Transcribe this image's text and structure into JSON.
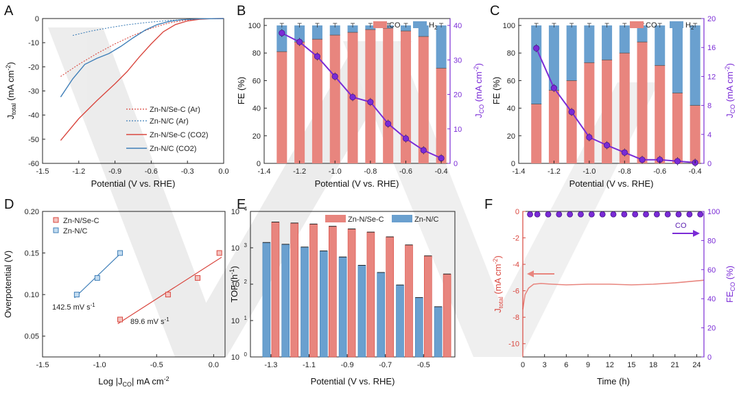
{
  "figure": {
    "panel_letters": [
      "A",
      "B",
      "C",
      "D",
      "E",
      "F"
    ]
  },
  "colors": {
    "red": "#e8857e",
    "red_dark": "#d9463e",
    "blue": "#6aa0cf",
    "blue_dark": "#3f7fb8",
    "purple": "#7a2bd6",
    "purple_dark": "#5a1eb0",
    "grid": "#888888",
    "watermark": "#bdbdbd"
  },
  "chart_data": [
    {
      "id": "A",
      "type": "line",
      "title": "",
      "xlabel": "Potential (V vs. RHE)",
      "ylabel": "J_total (mA cm^-2)",
      "xlim": [
        -1.5,
        0.0
      ],
      "ylim": [
        -60,
        0
      ],
      "xticks": [
        -1.5,
        -1.2,
        -0.9,
        -0.6,
        -0.3,
        0.0
      ],
      "yticks": [
        0,
        -10,
        -20,
        -30,
        -40,
        -50,
        -60
      ],
      "xtick_labels": [
        "-1.5",
        "-1.2",
        "-0.9",
        "-0.6",
        "-0.3",
        "0.0"
      ],
      "ytick_labels": [
        "0",
        "-10",
        "-20",
        "-30",
        "-40",
        "-50",
        "-60"
      ],
      "series": [
        {
          "name": "Zn-N/Se-C (Ar)",
          "style": "dotted",
          "color": "#d9463e",
          "x": [
            -1.35,
            -1.2,
            -1.05,
            -0.9,
            -0.75,
            -0.6,
            -0.45,
            -0.3,
            -0.15,
            0.0
          ],
          "y": [
            -24,
            -19,
            -14.5,
            -10.5,
            -7,
            -4,
            -1.8,
            -0.6,
            -0.1,
            0
          ]
        },
        {
          "name": "Zn-N/C (Ar)",
          "style": "dotted",
          "color": "#3f7fb8",
          "x": [
            -1.25,
            -1.1,
            -0.95,
            -0.8,
            -0.65,
            -0.5,
            -0.35,
            -0.2,
            -0.1,
            0.0
          ],
          "y": [
            -7,
            -5.2,
            -3.8,
            -2.6,
            -1.7,
            -1,
            -0.5,
            -0.2,
            -0.05,
            0
          ]
        },
        {
          "name": "Zn-N/Se-C (CO2)",
          "style": "solid",
          "color": "#d9463e",
          "x": [
            -1.35,
            -1.2,
            -1.05,
            -0.9,
            -0.8,
            -0.7,
            -0.6,
            -0.5,
            -0.4,
            -0.3,
            -0.2,
            -0.1,
            0.0
          ],
          "y": [
            -50.5,
            -41.5,
            -34,
            -27,
            -22,
            -16,
            -10.5,
            -5.5,
            -2.5,
            -1,
            -0.3,
            -0.05,
            0
          ]
        },
        {
          "name": "Zn-N/C (CO2)",
          "style": "solid",
          "color": "#3f7fb8",
          "x": [
            -1.35,
            -1.25,
            -1.15,
            -1.05,
            -0.95,
            -0.85,
            -0.75,
            -0.65,
            -0.55,
            -0.45,
            -0.35,
            -0.2,
            0.0
          ],
          "y": [
            -32.5,
            -25,
            -19,
            -16.5,
            -14.5,
            -11.5,
            -8,
            -4.8,
            -2.5,
            -1.2,
            -0.5,
            -0.1,
            0
          ]
        }
      ],
      "legend_position": "bottom-right"
    },
    {
      "id": "B",
      "type": "bar",
      "xlabel": "Potential (V vs. RHE)",
      "ylabel": "FE (%)",
      "ylabel_right": "J_CO (mA cm^-2)",
      "xlim": [
        -1.4,
        -0.35
      ],
      "ylim": [
        0,
        105
      ],
      "ylim_right": [
        0,
        42
      ],
      "xticks": [
        -1.4,
        -1.2,
        -1.0,
        -0.8,
        -0.6,
        -0.4
      ],
      "xtick_labels": [
        "-1.4",
        "-1.2",
        "-1.0",
        "-0.8",
        "-0.6",
        "-0.4"
      ],
      "yticks": [
        0,
        20,
        40,
        60,
        80,
        100
      ],
      "ytick_labels": [
        "0",
        "20",
        "40",
        "60",
        "80",
        "100"
      ],
      "yticks_right": [
        0,
        10,
        20,
        30,
        40
      ],
      "ytick_labels_right": [
        "0",
        "10",
        "20",
        "30",
        "40"
      ],
      "legend": [
        "CO",
        "H2"
      ],
      "x": [
        -1.3,
        -1.2,
        -1.1,
        -1.0,
        -0.9,
        -0.8,
        -0.7,
        -0.6,
        -0.5,
        -0.4
      ],
      "series": [
        {
          "name": "CO",
          "color": "#e8857e",
          "values": [
            81,
            88,
            90,
            93,
            95,
            97,
            98,
            96,
            92,
            69
          ]
        },
        {
          "name": "H2",
          "color": "#6aa0cf",
          "values": [
            19,
            12,
            10,
            7,
            5,
            3,
            2,
            4,
            8,
            31
          ]
        }
      ],
      "line": {
        "name": "J_CO",
        "color": "#7a2bd6",
        "values": [
          37.8,
          35.2,
          31,
          25.2,
          19.2,
          17.8,
          11.5,
          7.2,
          3.8,
          1.5
        ]
      }
    },
    {
      "id": "C",
      "type": "bar",
      "xlabel": "Potential (V vs. RHE)",
      "ylabel": "FE (%)",
      "ylabel_right": "J_CO (mA cm^-2)",
      "xlim": [
        -1.4,
        -0.35
      ],
      "ylim": [
        0,
        105
      ],
      "ylim_right": [
        0,
        20
      ],
      "xticks": [
        -1.4,
        -1.2,
        -1.0,
        -0.8,
        -0.6,
        -0.4
      ],
      "xtick_labels": [
        "-1.4",
        "-1.2",
        "-1.0",
        "-0.8",
        "-0.6",
        "-0.4"
      ],
      "yticks": [
        0,
        20,
        40,
        60,
        80,
        100
      ],
      "ytick_labels": [
        "0",
        "20",
        "40",
        "60",
        "80",
        "100"
      ],
      "yticks_right": [
        0,
        4,
        8,
        12,
        16,
        20
      ],
      "ytick_labels_right": [
        "0",
        "4",
        "8",
        "12",
        "16",
        "20"
      ],
      "legend": [
        "CO",
        "H2"
      ],
      "x": [
        -1.3,
        -1.2,
        -1.1,
        -1.0,
        -0.9,
        -0.8,
        -0.7,
        -0.6,
        -0.5,
        -0.4
      ],
      "series": [
        {
          "name": "CO",
          "color": "#e8857e",
          "values": [
            43,
            53,
            60,
            73,
            75,
            80,
            88,
            71,
            51,
            42
          ]
        },
        {
          "name": "H2",
          "color": "#6aa0cf",
          "values": [
            57,
            47,
            40,
            27,
            25,
            20,
            12,
            29,
            49,
            58
          ]
        }
      ],
      "line": {
        "name": "J_CO",
        "color": "#7a2bd6",
        "values": [
          15.9,
          10.4,
          7.1,
          3.6,
          2.5,
          1.5,
          0.5,
          0.5,
          0.3,
          0.1
        ]
      }
    },
    {
      "id": "D",
      "type": "scatter",
      "xlabel": "Log |J_CO| mA cm^-2",
      "ylabel": "Overpotential (V)",
      "xlim": [
        -1.5,
        0.1
      ],
      "ylim": [
        0.025,
        0.2
      ],
      "xticks": [
        -1.5,
        -1.0,
        -0.5,
        0.0
      ],
      "xtick_labels": [
        "-1.5",
        "-1.0",
        "-0.5",
        "0.0"
      ],
      "yticks": [
        0.05,
        0.1,
        0.15,
        0.2
      ],
      "ytick_labels": [
        "0.05",
        "0.10",
        "0.15",
        "0.20"
      ],
      "series": [
        {
          "name": "Zn-N/Se-C",
          "color": "#d9463e",
          "x": [
            -0.82,
            -0.4,
            -0.14,
            0.05
          ],
          "y": [
            0.07,
            0.1,
            0.12,
            0.15
          ]
        },
        {
          "name": "Zn-N/C",
          "color": "#3f7fb8",
          "x": [
            -1.2,
            -1.02,
            -0.82
          ],
          "y": [
            0.1,
            0.12,
            0.15
          ]
        }
      ],
      "annotations": [
        "142.5 mV s^-1",
        "89.6 mV s^-1"
      ],
      "legend_position": "top-left"
    },
    {
      "id": "E",
      "type": "bar",
      "yscale": "log",
      "xlabel": "Potential (V vs. RHE)",
      "ylabel": "TOF (h^-1)",
      "ylim": [
        1,
        10000
      ],
      "categories": [
        "-1.3",
        "-1.2",
        "-1.1",
        "-1.0",
        "-0.9",
        "-0.8",
        "-0.7",
        "-0.6",
        "-0.5",
        "-0.4"
      ],
      "xtick_labels": [
        "-1.3",
        "-1.1",
        "-0.9",
        "-0.7",
        "-0.5"
      ],
      "series": [
        {
          "name": "Zn-N/Se-C",
          "color": "#e8857e",
          "values": [
            5100,
            4800,
            4500,
            3900,
            3300,
            2700,
            2000,
            1200,
            600,
            190
          ]
        },
        {
          "name": "Zn-N/C",
          "color": "#6aa0cf",
          "values": [
            1400,
            1250,
            1050,
            820,
            560,
            330,
            210,
            95,
            43,
            24
          ]
        }
      ],
      "legend_position": "top-right"
    },
    {
      "id": "F",
      "type": "line",
      "xlabel": "Time (h)",
      "ylabel": "J_total (mA cm^-2)",
      "ylabel_right": "FE_CO (%)",
      "xlim": [
        0,
        25
      ],
      "ylim": [
        -11,
        0
      ],
      "ylim_right": [
        0,
        100
      ],
      "xticks": [
        0,
        3,
        6,
        9,
        12,
        15,
        18,
        21,
        24
      ],
      "xtick_labels": [
        "0",
        "3",
        "6",
        "9",
        "12",
        "15",
        "18",
        "21",
        "24"
      ],
      "yticks": [
        0,
        -2,
        -4,
        -6,
        -8,
        -10
      ],
      "ytick_labels": [
        "0",
        "-2",
        "-4",
        "-6",
        "-8",
        "-10"
      ],
      "yticks_right": [
        0,
        20,
        40,
        60,
        80,
        100
      ],
      "ytick_labels_right": [
        "0",
        "20",
        "40",
        "60",
        "80",
        "100"
      ],
      "series": [
        {
          "name": "J_total",
          "color": "#e8857e",
          "x": [
            0,
            0.3,
            0.8,
            1.5,
            2.5,
            4,
            6,
            9,
            12,
            15,
            18,
            21,
            24,
            25
          ],
          "y": [
            -7.4,
            -6.3,
            -5.8,
            -5.5,
            -5.45,
            -5.5,
            -5.55,
            -5.5,
            -5.5,
            -5.55,
            -5.5,
            -5.4,
            -5.25,
            -5.2
          ]
        },
        {
          "name": "FE_CO",
          "color": "#7a2bd6",
          "marker": "circle",
          "x": [
            1,
            2,
            3.5,
            5,
            6.5,
            8,
            9.5,
            11,
            12.5,
            14,
            15.5,
            17,
            18.5,
            20,
            21.5,
            23,
            24.5
          ],
          "y": [
            98,
            98,
            98,
            98,
            98,
            98,
            98,
            98,
            98,
            98,
            98,
            98,
            98,
            98,
            98,
            98,
            98
          ]
        }
      ],
      "annotations": [
        "CO"
      ]
    }
  ]
}
